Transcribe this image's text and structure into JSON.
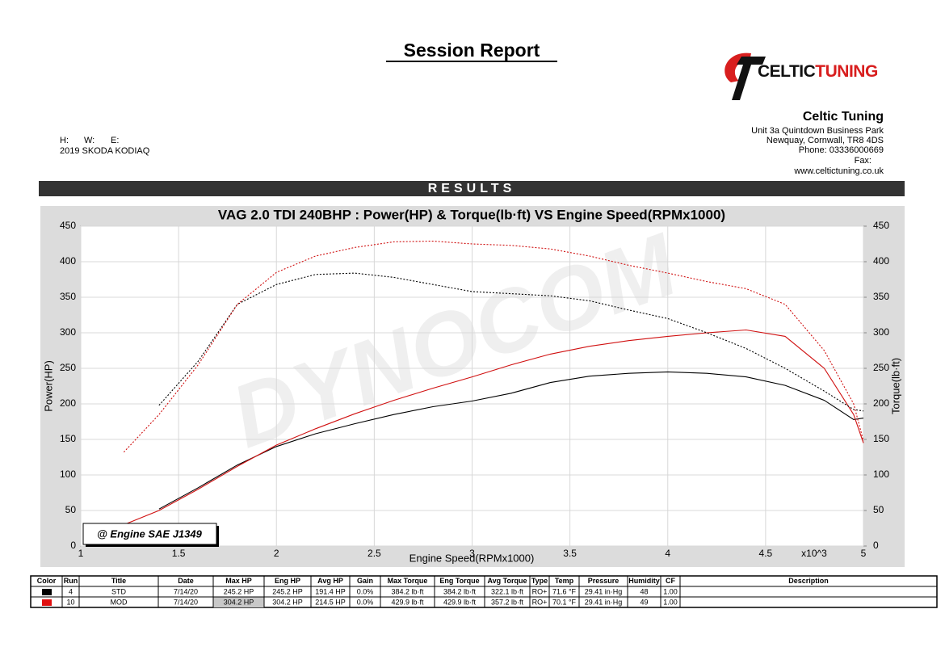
{
  "header": {
    "title": "Session Report",
    "logo": [
      "CELTIC",
      "TUNING"
    ],
    "company": [
      "Celtic Tuning",
      "Unit 3a Quintdown Business Park",
      "Newquay, Cornwall, TR8 4DS",
      "Phone: 03336000669",
      "Fax:",
      "www.celtictuning.co.uk"
    ],
    "contact": [
      "H:",
      "W:",
      "E:"
    ],
    "vehicle": "2019 SKODA KODIAQ",
    "section": "RESULTS"
  },
  "chart_data": {
    "type": "line",
    "title": "VAG 2.0 TDI 240BHP : Power(HP) & Torque(lb·ft) VS Engine Speed(RPMx1000)",
    "x_label": "Engine Speed(RPMx1000)",
    "x_multiplier": "x10^3",
    "y_label": "Power(HP)",
    "y2_label": "Torque(lb·ft)",
    "annotation": "@ Engine SAE J1349",
    "watermark": "DYNOCOM",
    "xlim": [
      1,
      5
    ],
    "xticks": [
      1,
      1.5,
      2,
      2.5,
      3,
      3.5,
      4,
      4.5,
      5
    ],
    "ylim": [
      0,
      450
    ],
    "yticks": [
      0,
      50,
      100,
      150,
      200,
      250,
      300,
      350,
      400,
      450
    ],
    "y2lim": [
      0,
      450
    ],
    "y2ticks": [
      0,
      50,
      100,
      150,
      200,
      250,
      300,
      350,
      400,
      450
    ],
    "grid": true,
    "x": [
      1.22,
      1.4,
      1.6,
      1.8,
      2,
      2.2,
      2.4,
      2.6,
      2.8,
      3,
      3.2,
      3.4,
      3.6,
      3.8,
      4,
      4.2,
      4.4,
      4.6,
      4.8,
      4.95,
      5
    ],
    "series": [
      {
        "color": "#000000",
        "line_style": "solid",
        "values": [
          null,
          52,
          82,
          114,
          140,
          158,
          172,
          185,
          196,
          204,
          215,
          230,
          239,
          243,
          245,
          243,
          238,
          226,
          205,
          178,
          180
        ]
      },
      {
        "color": "#d01010",
        "line_style": "solid",
        "values": [
          30,
          50,
          80,
          112,
          142,
          165,
          186,
          205,
          222,
          238,
          255,
          270,
          281,
          289,
          295,
          300,
          304,
          295,
          250,
          185,
          145
        ]
      },
      {
        "color": "#000000",
        "line_style": "dotted",
        "axis": "y2",
        "values": [
          null,
          198,
          260,
          340,
          368,
          382,
          384,
          378,
          368,
          358,
          355,
          352,
          345,
          332,
          320,
          300,
          278,
          250,
          218,
          192,
          190
        ]
      },
      {
        "color": "#d01010",
        "line_style": "dotted",
        "axis": "y2",
        "values": [
          132,
          185,
          255,
          340,
          385,
          408,
          420,
          428,
          429,
          425,
          423,
          418,
          408,
          395,
          384,
          372,
          362,
          340,
          275,
          200,
          148
        ]
      }
    ]
  },
  "table": {
    "columns": [
      "Color",
      "Run",
      "Title",
      "Date",
      "Max HP",
      "Eng HP",
      "Avg HP",
      "Gain",
      "Max Torque",
      "Eng Torque",
      "Avg Torque",
      "Type",
      "Temp",
      "Pressure",
      "Humidity",
      "CF",
      "Description"
    ],
    "rows": [
      {
        "color": "#000000",
        "cells": [
          "4",
          "STD",
          "7/14/20",
          "245.2 HP",
          "245.2 HP",
          "191.4 HP",
          "0.0%",
          "384.2 lb·ft",
          "384.2 lb·ft",
          "322.1 lb·ft",
          "RO+",
          "71.6 °F",
          "29.41 in·Hg",
          "48",
          "1.00"
        ]
      },
      {
        "color": "#e01010",
        "cells": [
          "10",
          "MOD",
          "7/14/20",
          "304.2 HP",
          "304.2 HP",
          "214.5 HP",
          "0.0%",
          "429.9 lb·ft",
          "429.9 lb·ft",
          "357.2 lb·ft",
          "RO+",
          "70.1 °F",
          "29.41 in·Hg",
          "49",
          "1.00"
        ]
      }
    ]
  }
}
